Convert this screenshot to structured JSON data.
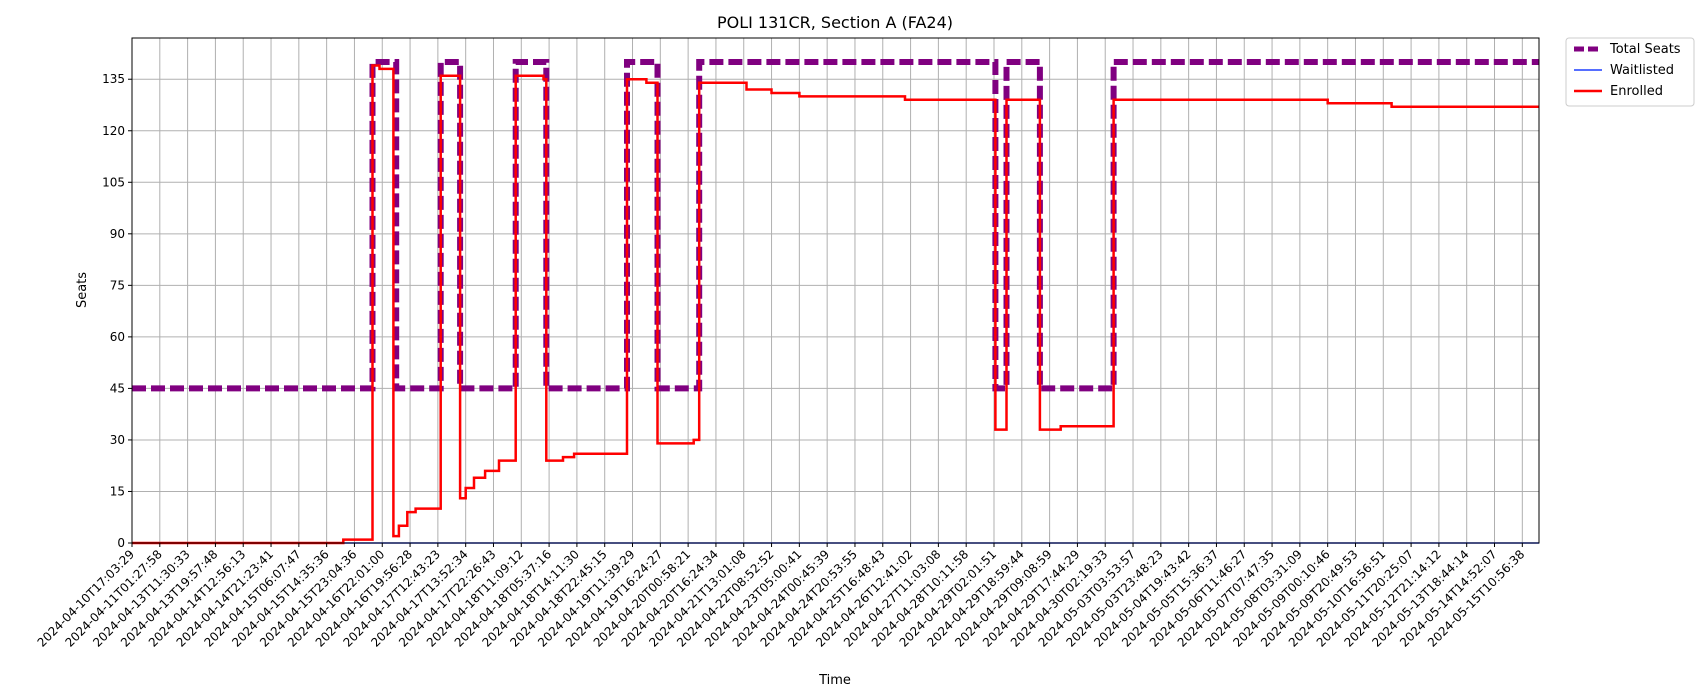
{
  "chart_data": {
    "type": "line",
    "title": "POLI 131CR, Section A (FA24)",
    "xlabel": "Time",
    "ylabel": "Seats",
    "ylim": [
      0,
      147
    ],
    "yticks": [
      0,
      15,
      30,
      45,
      60,
      75,
      90,
      105,
      120,
      135
    ],
    "xlim": [
      0,
      50.6
    ],
    "grid": true,
    "legend": "outside top-right",
    "xticks": [
      "2024-04-10T17:03:29",
      "2024-04-11T01:27:58",
      "2024-04-13T11:30:33",
      "2024-04-13T19:57:48",
      "2024-04-14T12:56:13",
      "2024-04-14T21:23:41",
      "2024-04-15T06:07:47",
      "2024-04-15T14:35:36",
      "2024-04-15T23:04:36",
      "2024-04-16T22:01:00",
      "2024-04-16T19:56:28",
      "2024-04-17T12:43:23",
      "2024-04-17T13:52:34",
      "2024-04-17T22:26:43",
      "2024-04-18T11:09:12",
      "2024-04-18T05:37:16",
      "2024-04-18T14:11:30",
      "2024-04-18T22:45:15",
      "2024-04-19T11:39:29",
      "2024-04-19T16:24:27",
      "2024-04-20T00:58:21",
      "2024-04-20T16:24:34",
      "2024-04-21T13:01:08",
      "2024-04-22T08:52:52",
      "2024-04-23T05:00:41",
      "2024-04-24T00:45:39",
      "2024-04-24T20:53:55",
      "2024-04-25T16:48:43",
      "2024-04-26T12:41:02",
      "2024-04-27T11:03:08",
      "2024-04-28T10:11:58",
      "2024-04-29T02:01:51",
      "2024-04-29T18:59:44",
      "2024-04-29T09:08:59",
      "2024-04-29T17:44:29",
      "2024-04-30T02:19:33",
      "2024-05-03T03:53:57",
      "2024-05-03T23:48:23",
      "2024-05-04T19:43:42",
      "2024-05-05T15:36:37",
      "2024-05-06T11:46:27",
      "2024-05-07T07:47:35",
      "2024-05-08T03:31:09",
      "2024-05-09T00:10:46",
      "2024-05-09T20:49:53",
      "2024-05-10T16:56:51",
      "2024-05-11T20:25:07",
      "2024-05-12T21:14:12",
      "2024-05-13T18:44:14",
      "2024-05-14T14:52:07",
      "2024-05-15T10:56:38"
    ],
    "series": [
      {
        "name": "Total Seats",
        "color": "#800080",
        "style": "dashed",
        "x": [
          0,
          8.65,
          8.65,
          9.1,
          9.1,
          9.5,
          9.5,
          11.1,
          11.1,
          11.8,
          11.8,
          13.8,
          13.8,
          14.9,
          14.9,
          17.8,
          17.8,
          18.9,
          18.9,
          20.4,
          20.4,
          31.05,
          31.05,
          31.45,
          31.45,
          32.65,
          32.65,
          35.3,
          35.3,
          50.6
        ],
        "values": [
          45,
          45,
          140,
          140,
          140,
          140,
          45,
          45,
          140,
          140,
          45,
          45,
          140,
          140,
          45,
          45,
          140,
          140,
          45,
          45,
          140,
          140,
          45,
          45,
          140,
          140,
          45,
          45,
          140,
          140
        ]
      },
      {
        "name": "Waitlisted",
        "color": "#1f3fff",
        "style": "solid",
        "x": [
          0,
          50.6
        ],
        "values": [
          0,
          0
        ]
      },
      {
        "name": "Enrolled",
        "color": "#ff0000",
        "style": "solid",
        "x": [
          0,
          7.6,
          7.6,
          8.65,
          8.65,
          8.9,
          8.9,
          9.4,
          9.4,
          9.6,
          9.6,
          9.9,
          9.9,
          10.2,
          10.2,
          11.1,
          11.1,
          11.8,
          11.8,
          12.0,
          12.0,
          12.3,
          12.3,
          12.7,
          12.7,
          13.2,
          13.2,
          13.8,
          13.8,
          14.8,
          14.8,
          14.9,
          14.9,
          15.5,
          15.5,
          15.9,
          15.9,
          17.8,
          17.8,
          18.5,
          18.5,
          18.9,
          18.9,
          20.2,
          20.2,
          20.4,
          20.4,
          22.1,
          22.1,
          23.0,
          23.0,
          24.0,
          24.0,
          27.8,
          27.8,
          31.05,
          31.05,
          31.45,
          31.45,
          32.65,
          32.65,
          33.4,
          33.4,
          35.3,
          35.3,
          43.0,
          43.0,
          45.3,
          45.3,
          50.6
        ],
        "values": [
          0,
          0,
          1,
          1,
          139,
          139,
          138,
          138,
          2,
          2,
          5,
          5,
          9,
          9,
          10,
          10,
          136,
          136,
          13,
          13,
          16,
          16,
          19,
          19,
          21,
          21,
          24,
          24,
          136,
          136,
          135,
          135,
          24,
          24,
          25,
          25,
          26,
          26,
          135,
          135,
          134,
          134,
          29,
          29,
          30,
          30,
          134,
          134,
          132,
          132,
          131,
          131,
          130,
          130,
          129,
          129,
          33,
          33,
          129,
          129,
          33,
          33,
          34,
          34,
          129,
          129,
          128,
          128,
          127,
          127
        ]
      }
    ]
  }
}
